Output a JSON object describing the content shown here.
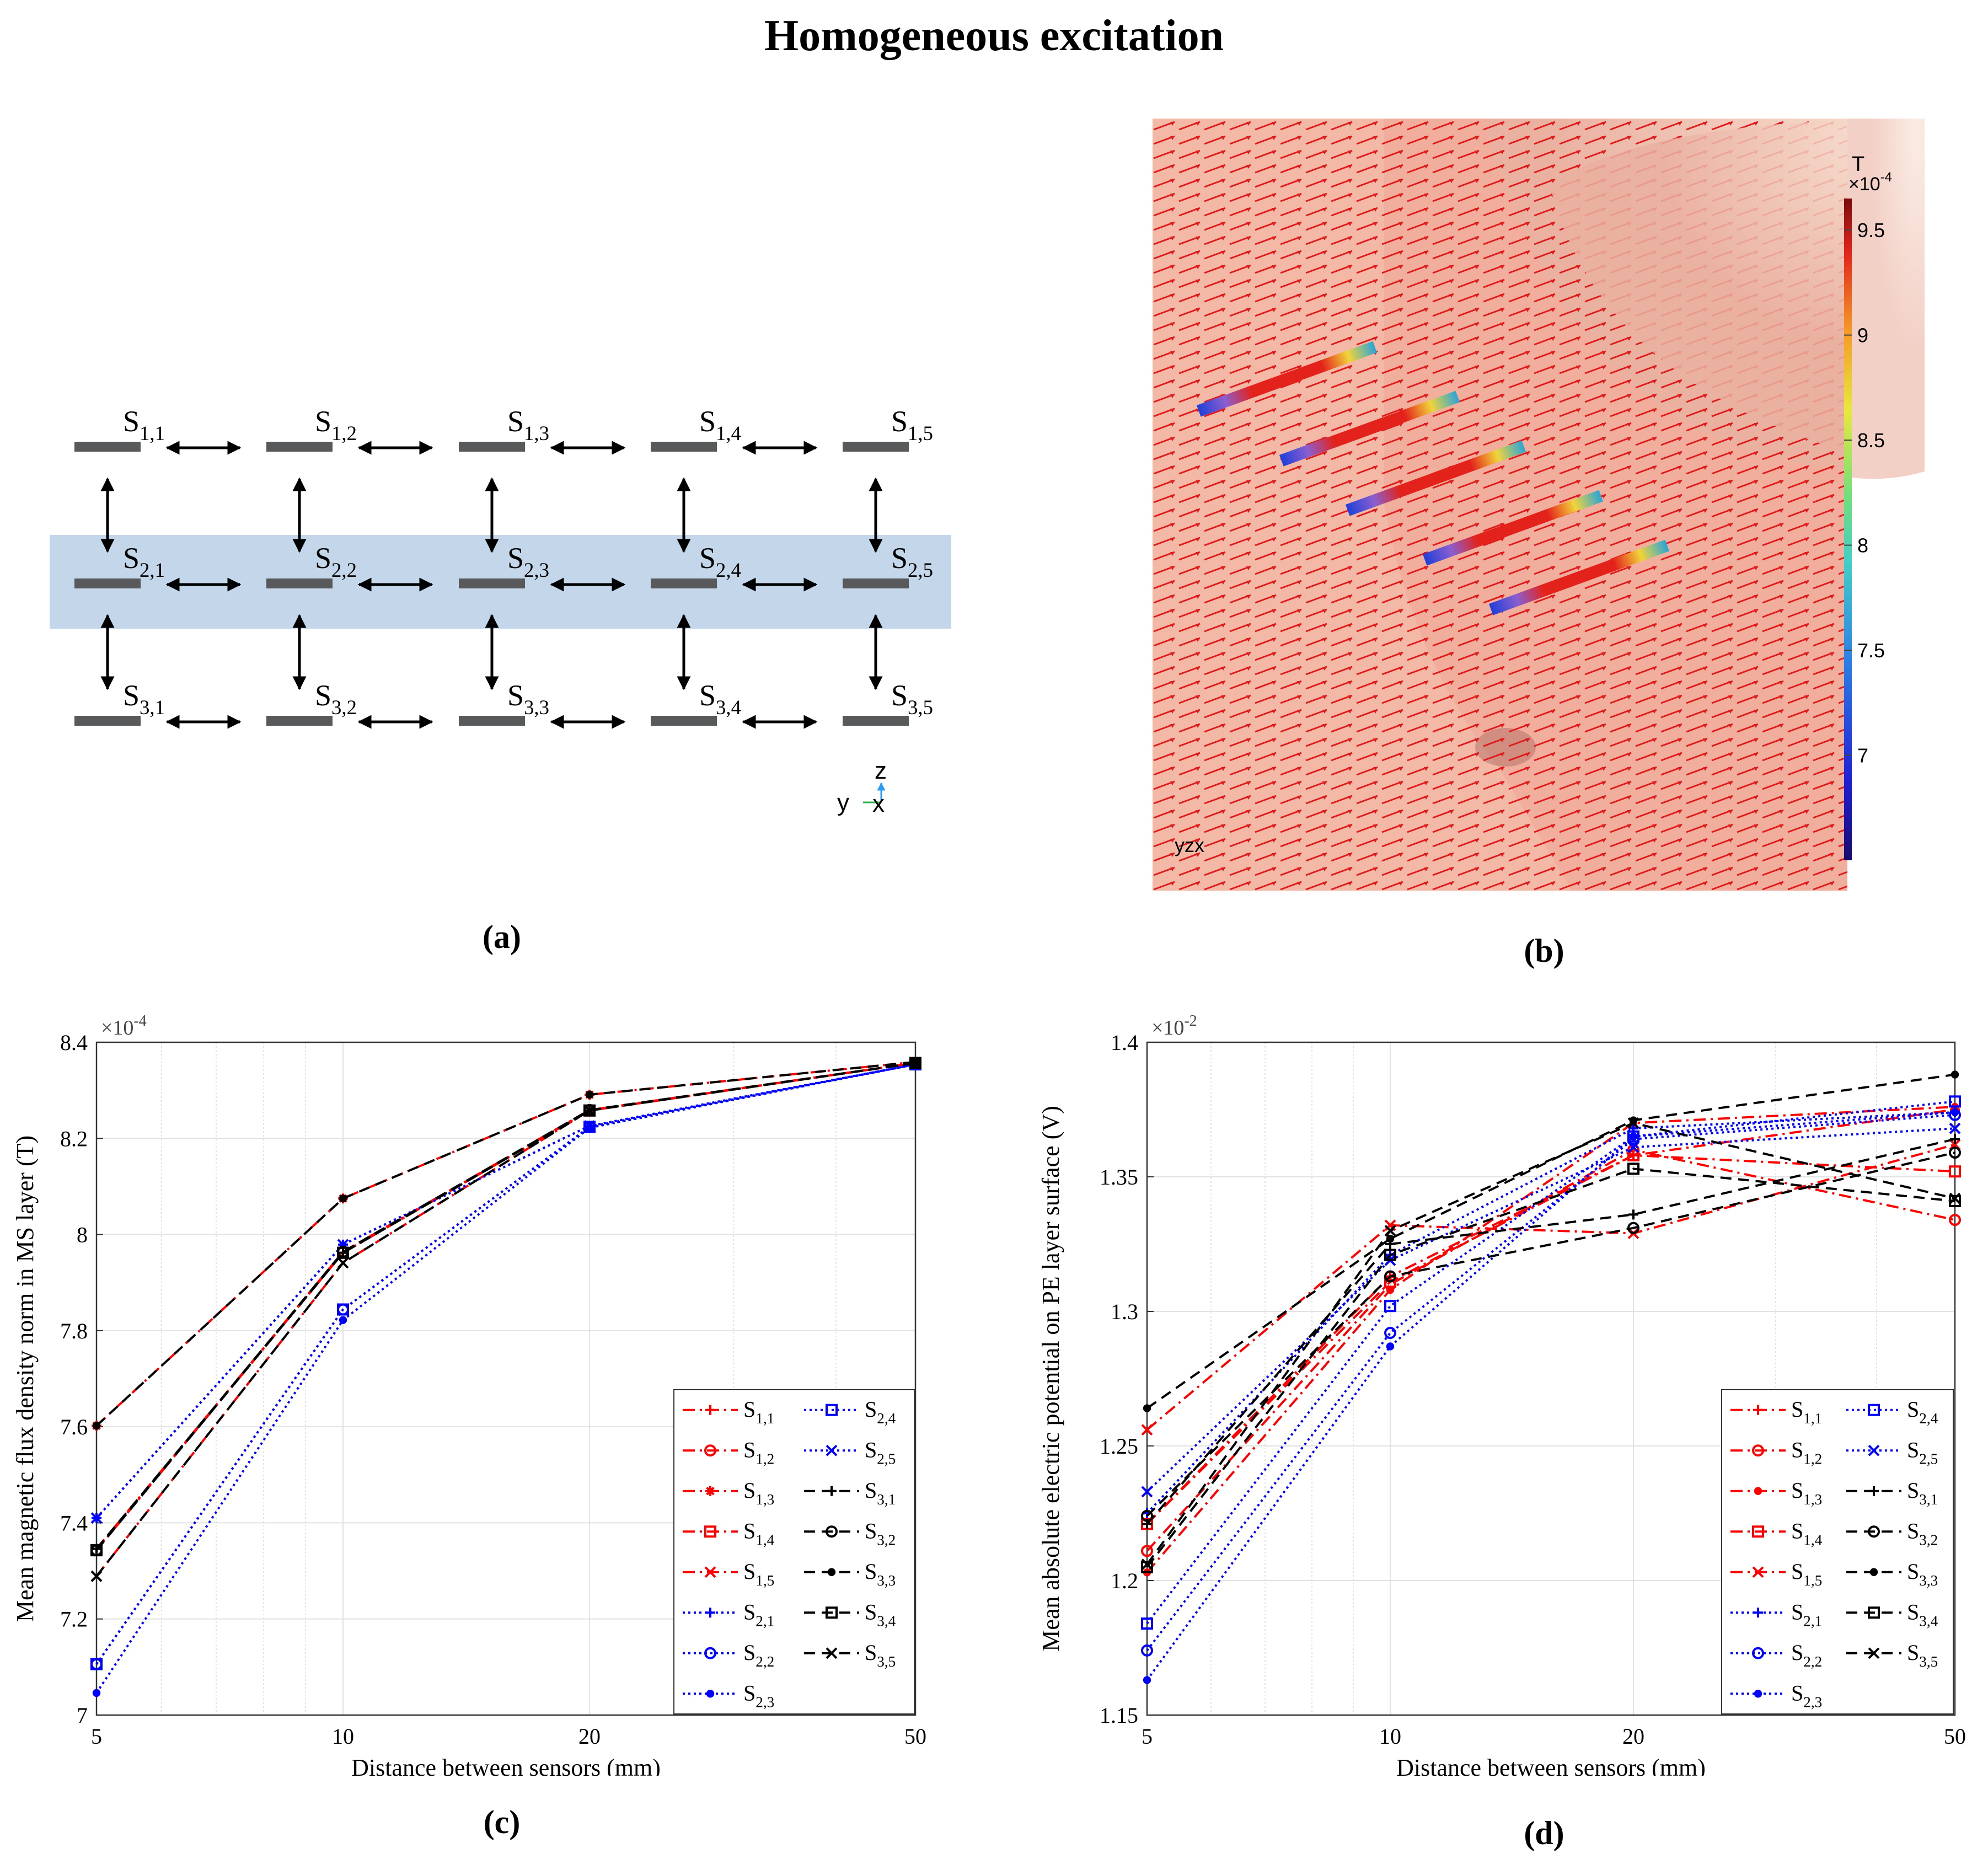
{
  "figure": {
    "title": "Homogeneous excitation",
    "panel_labels": [
      "(a)",
      "(b)",
      "(c)",
      "(d)"
    ]
  },
  "panel_a": {
    "sensors": [
      [
        "S1,1",
        "S1,2",
        "S1,3",
        "S1,4",
        "S1,5"
      ],
      [
        "S2,1",
        "S2,2",
        "S2,3",
        "S2,4",
        "S2,5"
      ],
      [
        "S3,1",
        "S3,2",
        "S3,3",
        "S3,4",
        "S3,5"
      ]
    ],
    "axes_labels": {
      "z": "z",
      "y": "y",
      "x": "x"
    },
    "colors": {
      "band": "#c3d6ea",
      "sensor": "#58595b"
    }
  },
  "panel_b": {
    "colorbar": {
      "unit": "T",
      "exponent": "×10",
      "exponent_power": "-4",
      "min": 6.5,
      "max": 9.65,
      "ticks": [
        "9.5",
        "9",
        "8.5",
        "8",
        "7.5",
        "7"
      ],
      "tick_values": [
        9.5,
        9,
        8.5,
        8,
        7.5,
        7
      ]
    },
    "triad": "yzx",
    "colors": {
      "background": "#f3b8a6",
      "arrow": "#e01b1b"
    }
  },
  "chart_data": [
    {
      "type": "line",
      "id": "c",
      "xscale": "log",
      "x": [
        5,
        10,
        20,
        50
      ],
      "xticks": [
        "5",
        "10",
        "20",
        "50"
      ],
      "xlim": [
        5,
        50
      ],
      "ylim": [
        7.0,
        8.4
      ],
      "yticks": [
        "7",
        "7.2",
        "7.4",
        "7.6",
        "7.8",
        "8",
        "8.2",
        "8.4"
      ],
      "exponent": "×10",
      "exponent_power": "-4",
      "xlabel": "Distance between sensors (mm)",
      "ylabel": "Mean magnetic flux density norm in MS layer (T)",
      "series": [
        {
          "name": "S1,1",
          "color": "#ff0000",
          "dash": "dashdot",
          "marker": "plus",
          "values": [
            7.346,
            7.962,
            8.258,
            8.357
          ]
        },
        {
          "name": "S1,2",
          "color": "#ff0000",
          "dash": "dashdot",
          "marker": "circle",
          "values": [
            7.343,
            7.964,
            8.259,
            8.357
          ]
        },
        {
          "name": "S1,3",
          "color": "#ff0000",
          "dash": "dashdot",
          "marker": "star",
          "values": [
            7.602,
            8.075,
            8.291,
            8.359
          ]
        },
        {
          "name": "S1,4",
          "color": "#ff0000",
          "dash": "dashdot",
          "marker": "square",
          "values": [
            7.343,
            7.962,
            8.258,
            8.357
          ]
        },
        {
          "name": "S1,5",
          "color": "#ff0000",
          "dash": "dashdot",
          "marker": "x",
          "values": [
            7.289,
            7.941,
            8.258,
            8.357
          ]
        },
        {
          "name": "S2,1",
          "color": "#0000ff",
          "dash": "dotted",
          "marker": "plus",
          "values": [
            7.41,
            7.979,
            8.226,
            8.354
          ]
        },
        {
          "name": "S2,2",
          "color": "#0000ff",
          "dash": "dotted",
          "marker": "circle",
          "values": [
            7.106,
            7.844,
            8.224,
            8.354
          ]
        },
        {
          "name": "S2,3",
          "color": "#0000ff",
          "dash": "dotted",
          "marker": "dot",
          "values": [
            7.046,
            7.822,
            8.222,
            8.354
          ]
        },
        {
          "name": "S2,4",
          "color": "#0000ff",
          "dash": "dotted",
          "marker": "square",
          "values": [
            7.106,
            7.844,
            8.224,
            8.354
          ]
        },
        {
          "name": "S2,5",
          "color": "#0000ff",
          "dash": "dotted",
          "marker": "x",
          "values": [
            7.41,
            7.979,
            8.226,
            8.354
          ]
        },
        {
          "name": "S3,1",
          "color": "#000000",
          "dash": "dashed",
          "marker": "plus",
          "values": [
            7.346,
            7.962,
            8.258,
            8.357
          ]
        },
        {
          "name": "S3,2",
          "color": "#000000",
          "dash": "dashed",
          "marker": "circle",
          "values": [
            7.343,
            7.964,
            8.259,
            8.357
          ]
        },
        {
          "name": "S3,3",
          "color": "#000000",
          "dash": "dashed",
          "marker": "dot",
          "values": [
            7.602,
            8.075,
            8.291,
            8.359
          ]
        },
        {
          "name": "S3,4",
          "color": "#000000",
          "dash": "dashed",
          "marker": "square",
          "values": [
            7.343,
            7.962,
            8.258,
            8.357
          ]
        },
        {
          "name": "S3,5",
          "color": "#000000",
          "dash": "dashed",
          "marker": "x",
          "values": [
            7.289,
            7.941,
            8.258,
            8.357
          ]
        }
      ]
    },
    {
      "type": "line",
      "id": "d",
      "xscale": "log",
      "x": [
        5,
        10,
        20,
        50
      ],
      "xticks": [
        "5",
        "10",
        "20",
        "50"
      ],
      "xlim": [
        5,
        50
      ],
      "ylim": [
        1.15,
        1.4
      ],
      "yticks": [
        "1.15",
        "1.2",
        "1.25",
        "1.3",
        "1.35",
        "1.4"
      ],
      "exponent": "×10",
      "exponent_power": "-2",
      "xlabel": "Distance between sensors (mm)",
      "ylabel": "Mean absolute electric potential on PE layer surface (V)",
      "series": [
        {
          "name": "S1,1",
          "color": "#ff0000",
          "dash": "dashdot",
          "marker": "plus",
          "values": [
            1.221,
            1.313,
            1.358,
            1.375
          ]
        },
        {
          "name": "S1,2",
          "color": "#ff0000",
          "dash": "dashdot",
          "marker": "circle",
          "values": [
            1.211,
            1.31,
            1.36,
            1.334
          ]
        },
        {
          "name": "S1,3",
          "color": "#ff0000",
          "dash": "dashdot",
          "marker": "dot",
          "values": [
            1.203,
            1.308,
            1.37,
            1.376
          ]
        },
        {
          "name": "S1,4",
          "color": "#ff0000",
          "dash": "dashdot",
          "marker": "square",
          "values": [
            1.221,
            1.311,
            1.358,
            1.352
          ]
        },
        {
          "name": "S1,5",
          "color": "#ff0000",
          "dash": "dashdot",
          "marker": "x",
          "values": [
            1.256,
            1.332,
            1.329,
            1.362
          ]
        },
        {
          "name": "S2,1",
          "color": "#0000ff",
          "dash": "dotted",
          "marker": "plus",
          "values": [
            1.225,
            1.321,
            1.368,
            1.374
          ]
        },
        {
          "name": "S2,2",
          "color": "#0000ff",
          "dash": "dotted",
          "marker": "circle",
          "values": [
            1.174,
            1.292,
            1.364,
            1.373
          ]
        },
        {
          "name": "S2,3",
          "color": "#0000ff",
          "dash": "dotted",
          "marker": "dot",
          "values": [
            1.163,
            1.287,
            1.365,
            1.374
          ]
        },
        {
          "name": "S2,4",
          "color": "#0000ff",
          "dash": "dotted",
          "marker": "square",
          "values": [
            1.184,
            1.302,
            1.365,
            1.378
          ]
        },
        {
          "name": "S2,5",
          "color": "#0000ff",
          "dash": "dotted",
          "marker": "x",
          "values": [
            1.233,
            1.319,
            1.361,
            1.368
          ]
        },
        {
          "name": "S3,1",
          "color": "#000000",
          "dash": "dashed",
          "marker": "plus",
          "values": [
            1.221,
            1.325,
            1.336,
            1.364
          ]
        },
        {
          "name": "S3,2",
          "color": "#000000",
          "dash": "dashed",
          "marker": "circle",
          "values": [
            1.224,
            1.313,
            1.331,
            1.359
          ]
        },
        {
          "name": "S3,3",
          "color": "#000000",
          "dash": "dashed",
          "marker": "dot",
          "values": [
            1.264,
            1.327,
            1.371,
            1.388
          ]
        },
        {
          "name": "S3,4",
          "color": "#000000",
          "dash": "dashed",
          "marker": "square",
          "values": [
            1.205,
            1.321,
            1.353,
            1.341
          ]
        },
        {
          "name": "S3,5",
          "color": "#000000",
          "dash": "dashed",
          "marker": "x",
          "values": [
            1.206,
            1.33,
            1.37,
            1.342
          ]
        }
      ]
    }
  ]
}
